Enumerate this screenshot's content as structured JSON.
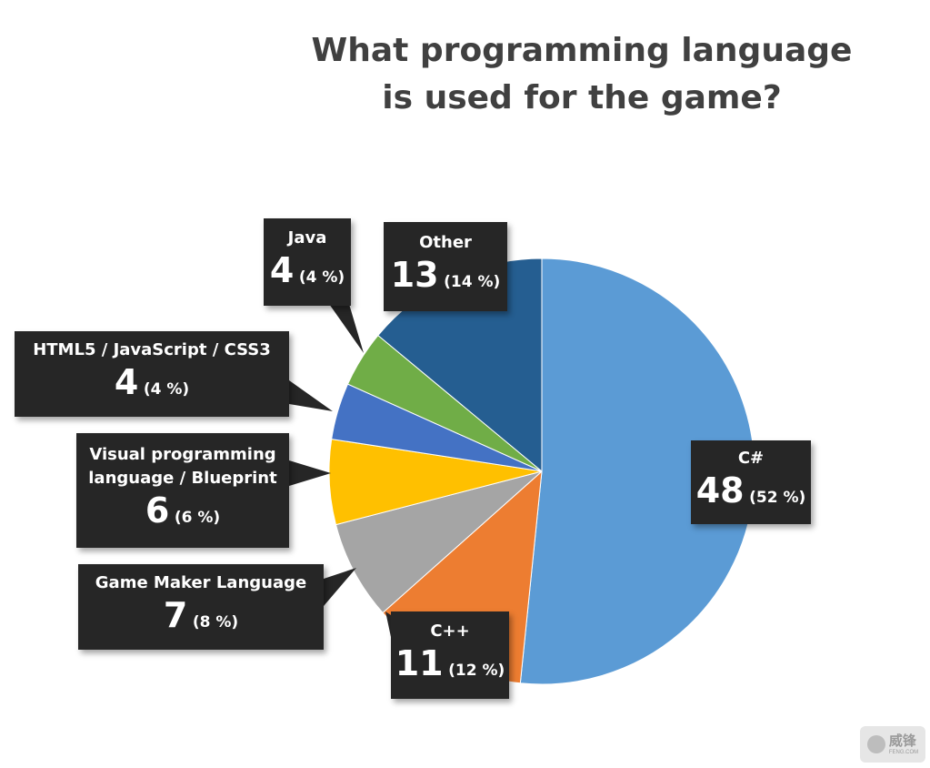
{
  "chart_data": {
    "type": "pie",
    "title_lines": [
      "What programming language",
      "is used for the game?"
    ],
    "slices": [
      {
        "label": "C#",
        "label_lines": [
          "C#"
        ],
        "value": "48",
        "percent_label": "(52 %)",
        "v": 48,
        "color": "#5b9bd5"
      },
      {
        "label": "C++",
        "label_lines": [
          "C++"
        ],
        "value": "11",
        "percent_label": "(12 %)",
        "v": 11,
        "color": "#ed7d31"
      },
      {
        "label": "Game Maker Language",
        "label_lines": [
          "Game Maker Language"
        ],
        "value": "7",
        "percent_label": "(8 %)",
        "v": 7,
        "color": "#a5a5a5"
      },
      {
        "label": "Visual programming language / Blueprint",
        "label_lines": [
          "Visual programming",
          "language / Blueprint"
        ],
        "value": "6",
        "percent_label": "(6 %)",
        "v": 6,
        "color": "#ffc000"
      },
      {
        "label": "HTML5 / JavaScript / CSS3",
        "label_lines": [
          "HTML5 / JavaScript / CSS3"
        ],
        "value": "4",
        "percent_label": "(4 %)",
        "v": 4,
        "color": "#4472c4"
      },
      {
        "label": "Java",
        "label_lines": [
          "Java"
        ],
        "value": "4",
        "percent_label": "(4 %)",
        "v": 4,
        "color": "#70ad47"
      },
      {
        "label": "Other",
        "label_lines": [
          "Other"
        ],
        "value": "13",
        "percent_label": "(14 %)",
        "v": 13,
        "color": "#255e91"
      }
    ]
  },
  "watermark": {
    "main": "威锋",
    "sub": "FENG.COM"
  }
}
